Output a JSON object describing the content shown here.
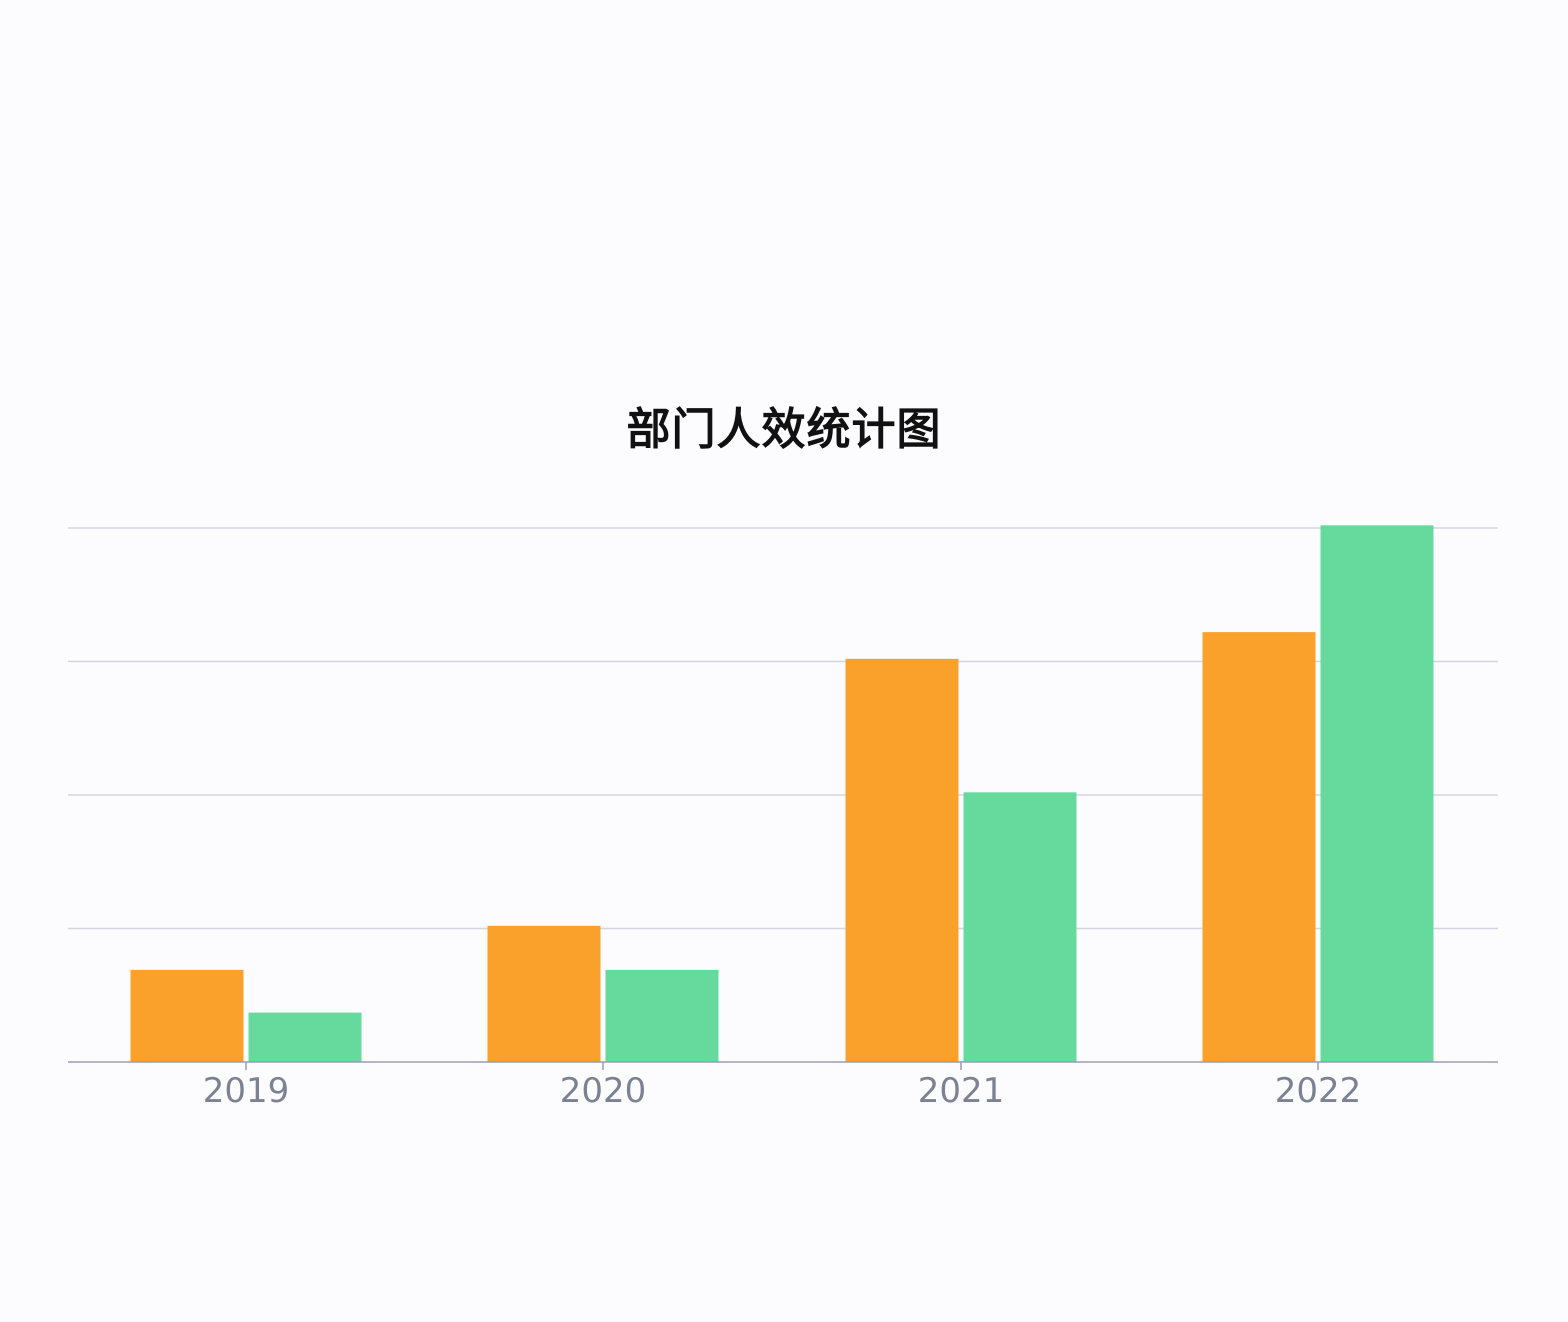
{
  "chart_data": {
    "type": "bar",
    "title": "部门人效统计图",
    "categories": [
      "2019",
      "2020",
      "2021",
      "2022"
    ],
    "series": [
      {
        "color": "#f9a12b",
        "values": [
          0.69,
          1.02,
          3.02,
          3.22
        ]
      },
      {
        "color": "#66d99c",
        "values": [
          0.37,
          0.69,
          2.02,
          4.02
        ]
      }
    ],
    "ylim": [
      0,
      4
    ],
    "grid": true,
    "xlabel": "",
    "ylabel": "",
    "colors": {
      "gridline": "#d3d5e0",
      "axis": "#9a9db0",
      "tick_label": "#7b8294",
      "background": "#fcfcfe"
    }
  }
}
